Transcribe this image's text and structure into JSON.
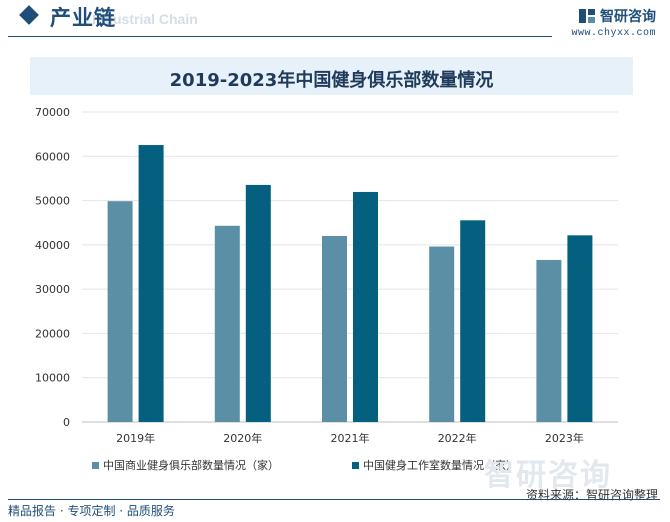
{
  "header": {
    "section_title": "产业链",
    "section_subtitle": "Industrial Chain",
    "brand_name": "智研咨询",
    "brand_url": "www.chyxx.com"
  },
  "footer": {
    "tagline": "精品报告 · 专项定制 · 品质服务",
    "watermark": "智研咨询",
    "source": "资料来源：智研咨询整理"
  },
  "colors": {
    "accent": "#1f4e79",
    "series_1": "#5b8fa6",
    "series_2": "#05607f",
    "title_band": "#e7f1f9"
  },
  "chart_data": {
    "type": "bar",
    "title": "2019-2023年中国健身俱乐部数量情况",
    "categories": [
      "2019年",
      "2020年",
      "2021年",
      "2022年",
      "2023年"
    ],
    "series": [
      {
        "name": "中国商业健身俱乐部数量情况（家）",
        "values": [
          49860,
          44305,
          41998,
          39621,
          36593
        ]
      },
      {
        "name": "中国健身工作室数量情况（家）",
        "values": [
          62540,
          53534,
          51946,
          45543,
          42151
        ]
      }
    ],
    "ylim": [
      0,
      70000
    ],
    "yticks": [
      "0",
      "10000",
      "20000",
      "30000",
      "40000",
      "50000",
      "60000",
      "70000"
    ],
    "grid": true,
    "legend_position": "bottom"
  }
}
